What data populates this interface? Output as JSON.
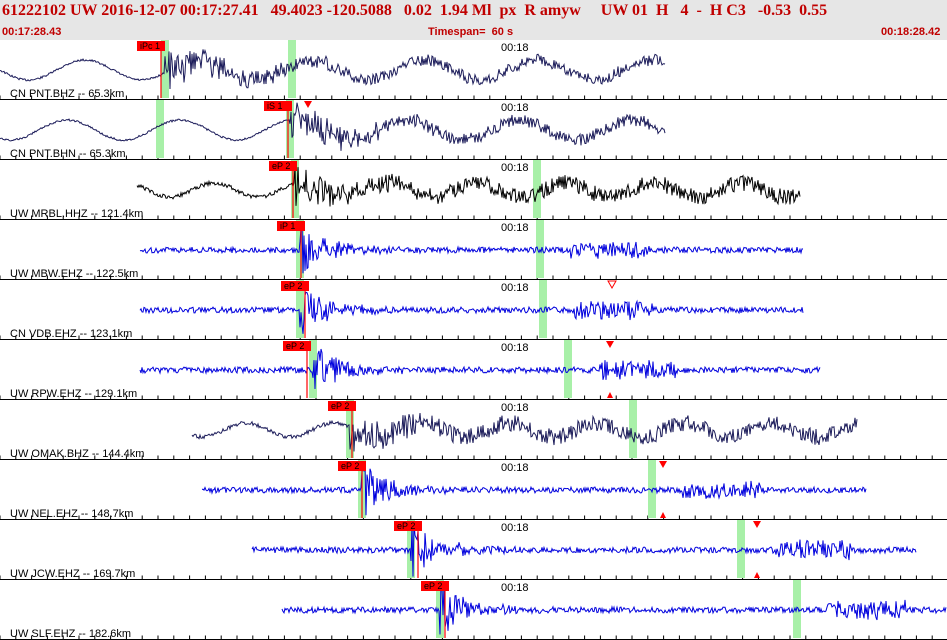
{
  "header": {
    "title": "61222102 UW 2016-12-07 00:17:27.41   49.4023 -120.5088   0.02  1.94 Ml  px  R amyw     UW 01  H   4  -  H C3   -0.53  0.55",
    "start_time": "00:17:28.43",
    "timespan": "Timespan=  60 s",
    "end_time": "00:18:28.42"
  },
  "time_mark": "00:18",
  "colors": {
    "header_bg": "#e6e6e6",
    "header_text": "#c00000",
    "pick_box": "#ff0000",
    "phase_bar": "#a8f0a8",
    "trace_dark": "#1c1c5a",
    "trace_black": "#000000",
    "trace_blue": "#0000dd"
  },
  "traces": [
    {
      "label": "CN PNT.BHZ -- 65.3km",
      "pick": "iPc 1",
      "color": "dark",
      "triangle": null
    },
    {
      "label": "CN PNT.BHN -- 65.3km",
      "pick": "iS 1",
      "color": "dark",
      "triangle": "down-filled"
    },
    {
      "label": "UW MRBL.HHZ -- 121.4km",
      "pick": "eP 2",
      "color": "black",
      "triangle": null
    },
    {
      "label": "UW MBW.EHZ -- 122.5km",
      "pick": "iP 1",
      "color": "blue",
      "triangle": null
    },
    {
      "label": "CN VDB.EHZ -- 123.1km",
      "pick": "eP 2",
      "color": "blue",
      "triangle": "down-open"
    },
    {
      "label": "UW RPW.EHZ -- 129.1km",
      "pick": "eP 2",
      "color": "blue",
      "triangle": "down-filled+up"
    },
    {
      "label": "UW OMAK.BHZ -- 144.4km",
      "pick": "eP 2",
      "color": "dark",
      "triangle": null
    },
    {
      "label": "UW NEL.EHZ -- 148.7km",
      "pick": "eP 2",
      "color": "blue",
      "triangle": "down-filled+up"
    },
    {
      "label": "UW JCW.EHZ -- 169.7km",
      "pick": "eP 2",
      "color": "blue",
      "triangle": "down-filled+up"
    },
    {
      "label": "UW SLF.EHZ -- 182.6km",
      "pick": "eP 2",
      "color": "blue",
      "triangle": null
    }
  ]
}
